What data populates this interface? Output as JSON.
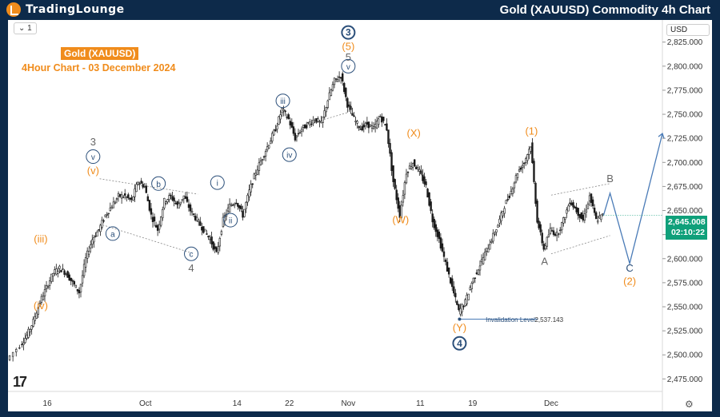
{
  "header": {
    "brand_part1": "TradingLounge",
    "title": "Gold (XAUUSD) Commodity 4h Chart"
  },
  "toolbar": {
    "timeframe": "1",
    "currency": "USD"
  },
  "symbol_badge": "Gold (XAUUSD)",
  "subtitle": "4Hour Chart - 03 December 2024",
  "price_tag": {
    "price": "2,645.008",
    "countdown": "02:10:22"
  },
  "invalidation": {
    "label": "Invalidation Level",
    "value": "2,537.143"
  },
  "colors": {
    "accent": "#f08c1c",
    "wave_blue": "#2b4f7a",
    "candle": "#1a1a1a",
    "price_green": "#0fa07a",
    "projection": "#4a7bb7"
  },
  "chart_data": {
    "type": "candlestick",
    "title": "Gold (XAUUSD) Commodity 4h Chart",
    "ylim": [
      2462,
      2848
    ],
    "y_ticks": [
      "2,825.000",
      "2,800.000",
      "2,775.000",
      "2,750.000",
      "2,725.000",
      "2,700.000",
      "2,675.000",
      "2,650.000",
      "2,625.000",
      "2,600.000",
      "2,575.000",
      "2,550.000",
      "2,525.000",
      "2,500.000",
      "2,475.000"
    ],
    "y_tick_values": [
      2825,
      2800,
      2775,
      2750,
      2725,
      2700,
      2675,
      2650,
      2625,
      2600,
      2575,
      2550,
      2525,
      2500,
      2475
    ],
    "x_ticks": [
      "16",
      "Oct",
      "14",
      "22",
      "Nov",
      "11",
      "19",
      "Dec"
    ],
    "x_tick_days": [
      16,
      31,
      45,
      53,
      62,
      73,
      81,
      93
    ],
    "x_domain_days": [
      10,
      110
    ],
    "price_path": [
      [
        10,
        2495
      ],
      [
        12,
        2510
      ],
      [
        13,
        2520
      ],
      [
        14,
        2535
      ],
      [
        15,
        2555
      ],
      [
        16,
        2570
      ],
      [
        17,
        2585
      ],
      [
        18,
        2590
      ],
      [
        19,
        2585
      ],
      [
        20,
        2575
      ],
      [
        21,
        2565
      ],
      [
        22,
        2600
      ],
      [
        23,
        2620
      ],
      [
        24,
        2630
      ],
      [
        25,
        2645
      ],
      [
        26,
        2655
      ],
      [
        27,
        2665
      ],
      [
        28,
        2665
      ],
      [
        29,
        2660
      ],
      [
        30,
        2680
      ],
      [
        31,
        2675
      ],
      [
        32,
        2645
      ],
      [
        33,
        2630
      ],
      [
        34,
        2660
      ],
      [
        35,
        2665
      ],
      [
        36,
        2655
      ],
      [
        37,
        2665
      ],
      [
        38,
        2650
      ],
      [
        39,
        2640
      ],
      [
        40,
        2630
      ],
      [
        41,
        2620
      ],
      [
        42,
        2605
      ],
      [
        43,
        2640
      ],
      [
        44,
        2655
      ],
      [
        45,
        2660
      ],
      [
        46,
        2645
      ],
      [
        47,
        2670
      ],
      [
        48,
        2690
      ],
      [
        49,
        2705
      ],
      [
        50,
        2720
      ],
      [
        51,
        2735
      ],
      [
        52,
        2755
      ],
      [
        53,
        2745
      ],
      [
        54,
        2725
      ],
      [
        55,
        2735
      ],
      [
        56,
        2740
      ],
      [
        57,
        2745
      ],
      [
        58,
        2740
      ],
      [
        59,
        2765
      ],
      [
        60,
        2785
      ],
      [
        61,
        2790
      ],
      [
        62,
        2760
      ],
      [
        63,
        2745
      ],
      [
        64,
        2735
      ],
      [
        65,
        2740
      ],
      [
        66,
        2735
      ],
      [
        67,
        2748
      ],
      [
        68,
        2735
      ],
      [
        69,
        2680
      ],
      [
        70,
        2645
      ],
      [
        71,
        2690
      ],
      [
        72,
        2700
      ],
      [
        73,
        2690
      ],
      [
        74,
        2675
      ],
      [
        75,
        2640
      ],
      [
        76,
        2620
      ],
      [
        77,
        2595
      ],
      [
        78,
        2570
      ],
      [
        79,
        2545
      ],
      [
        80,
        2555
      ],
      [
        81,
        2575
      ],
      [
        82,
        2590
      ],
      [
        83,
        2605
      ],
      [
        84,
        2620
      ],
      [
        85,
        2635
      ],
      [
        86,
        2655
      ],
      [
        87,
        2670
      ],
      [
        88,
        2690
      ],
      [
        89,
        2700
      ],
      [
        90,
        2718
      ],
      [
        91,
        2640
      ],
      [
        92,
        2610
      ],
      [
        93,
        2630
      ],
      [
        94,
        2625
      ],
      [
        95,
        2640
      ],
      [
        96,
        2660
      ],
      [
        97,
        2650
      ],
      [
        98,
        2640
      ],
      [
        99,
        2665
      ],
      [
        100,
        2640
      ],
      [
        101,
        2645
      ]
    ],
    "projection": [
      [
        101,
        2645
      ],
      [
        102,
        2668
      ],
      [
        105,
        2595
      ],
      [
        110,
        2730
      ]
    ],
    "last_price": 2645.008,
    "wave_labels": [
      {
        "text": "3",
        "day": 23,
        "price": 2721,
        "style": "plain-gray"
      },
      {
        "text": "v",
        "day": 23,
        "price": 2706,
        "style": "circle"
      },
      {
        "text": "(v)",
        "day": 23,
        "price": 2691,
        "style": "orange"
      },
      {
        "text": "b",
        "day": 33,
        "price": 2678,
        "style": "circle"
      },
      {
        "text": "a",
        "day": 26,
        "price": 2626,
        "style": "circle"
      },
      {
        "text": "c",
        "day": 38,
        "price": 2605,
        "style": "circle"
      },
      {
        "text": "4",
        "day": 38,
        "price": 2590,
        "style": "plain-gray"
      },
      {
        "text": "(iii)",
        "day": 15,
        "price": 2620,
        "style": "orange"
      },
      {
        "text": "(iv)",
        "day": 15,
        "price": 2551,
        "style": "orange"
      },
      {
        "text": "i",
        "day": 42,
        "price": 2679,
        "style": "circle"
      },
      {
        "text": "ii",
        "day": 44,
        "price": 2640,
        "style": "circle"
      },
      {
        "text": "iii",
        "day": 52,
        "price": 2764,
        "style": "circle"
      },
      {
        "text": "iv",
        "day": 53,
        "price": 2708,
        "style": "circle"
      },
      {
        "text": "3",
        "day": 62,
        "price": 2835,
        "style": "circle-bold"
      },
      {
        "text": "(5)",
        "day": 62,
        "price": 2820,
        "style": "orange"
      },
      {
        "text": "5",
        "day": 62,
        "price": 2809,
        "style": "plain-gray"
      },
      {
        "text": "v",
        "day": 62,
        "price": 2800,
        "style": "circle"
      },
      {
        "text": "(X)",
        "day": 72,
        "price": 2730,
        "style": "orange"
      },
      {
        "text": "(W)",
        "day": 70,
        "price": 2640,
        "style": "orange"
      },
      {
        "text": "(1)",
        "day": 90,
        "price": 2732,
        "style": "orange"
      },
      {
        "text": "(Y)",
        "day": 79,
        "price": 2528,
        "style": "orange"
      },
      {
        "text": "4",
        "day": 79,
        "price": 2512,
        "style": "circle-bold"
      },
      {
        "text": "B",
        "day": 102,
        "price": 2683,
        "style": "plain-gray"
      },
      {
        "text": "A",
        "day": 92,
        "price": 2597,
        "style": "plain-gray"
      },
      {
        "text": "C",
        "day": 105,
        "price": 2590,
        "style": "plain-blue"
      },
      {
        "text": "(2)",
        "day": 105,
        "price": 2576,
        "style": "orange"
      }
    ]
  }
}
